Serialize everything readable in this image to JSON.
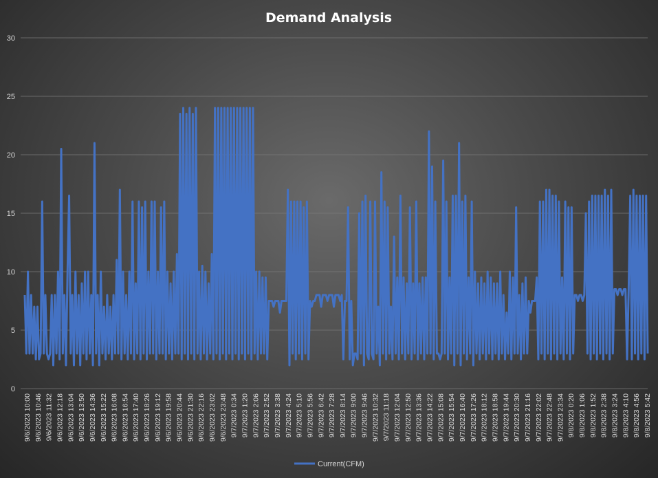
{
  "chart_data": {
    "type": "line",
    "title": "Demand Analysis",
    "xlabel": "",
    "ylabel": "",
    "ylim": [
      0,
      30
    ],
    "yticks": [
      0,
      5,
      10,
      15,
      20,
      25,
      30
    ],
    "grid": true,
    "legend_position": "bottom",
    "series_color": "#4472c4",
    "x_tick_labels": [
      "9/6/2023 10:00",
      "9/6/2023 10:46",
      "9/6/2023 11:32",
      "9/6/2023 12:18",
      "9/6/2023 13:04",
      "9/6/2023 13:50",
      "9/6/2023 14:36",
      "9/6/2023 15:22",
      "9/6/2023 16:08",
      "9/6/2023 16:54",
      "9/6/2023 17:40",
      "9/6/2023 18:26",
      "9/6/2023 19:12",
      "9/6/2023 19:58",
      "9/6/2023 20:44",
      "9/6/2023 21:30",
      "9/6/2023 22:16",
      "9/6/2023 23:02",
      "9/6/2023 23:48",
      "9/7/2023 0:34",
      "9/7/2023 1:20",
      "9/7/2023 2:06",
      "9/7/2023 2:52",
      "9/7/2023 3:38",
      "9/7/2023 4:24",
      "9/7/2023 5:10",
      "9/7/2023 5:56",
      "9/7/2023 6:42",
      "9/7/2023 7:28",
      "9/7/2023 8:14",
      "9/7/2023 9:00",
      "9/7/2023 9:46",
      "9/7/2023 10:32",
      "9/7/2023 11:18",
      "9/7/2023 12:04",
      "9/7/2023 12:50",
      "9/7/2023 13:36",
      "9/7/2023 14:22",
      "9/7/2023 15:08",
      "9/7/2023 15:54",
      "9/7/2023 16:40",
      "9/7/2023 17:26",
      "9/7/2023 18:12",
      "9/7/2023 18:58",
      "9/7/2023 19:44",
      "9/7/2023 20:30",
      "9/7/2023 21:16",
      "9/7/2023 22:02",
      "9/7/2023 22:48",
      "9/7/2023 23:34",
      "9/8/2023 0:20",
      "9/8/2023 1:06",
      "9/8/2023 1:52",
      "9/8/2023 2:38",
      "9/8/2023 3:24",
      "9/8/2023 4:10",
      "9/8/2023 4:56",
      "9/8/2023 5:42"
    ],
    "series": [
      {
        "name": "Current(CFM)",
        "values": [
          8,
          3,
          10,
          3,
          8,
          3,
          7,
          2.5,
          7,
          2.5,
          3,
          16,
          3,
          8,
          3,
          2.5,
          3,
          8,
          2,
          8,
          3,
          10,
          2.5,
          20.5,
          3,
          8,
          2,
          10,
          16.5,
          3,
          8,
          2,
          10,
          3,
          8,
          2,
          9,
          3,
          10,
          2.5,
          10,
          3,
          8,
          2,
          21,
          3,
          8,
          2,
          10,
          3,
          7,
          2.5,
          8,
          3,
          7,
          2.5,
          8,
          3,
          11,
          3,
          17,
          2.5,
          10,
          3,
          8,
          2.5,
          10,
          3,
          16,
          2.5,
          9,
          3,
          16,
          2.5,
          15.5,
          3,
          16,
          2.5,
          10,
          3,
          16,
          3,
          16,
          2.5,
          10,
          3,
          15.5,
          3,
          16,
          2.5,
          10,
          3,
          9,
          2.5,
          10,
          3,
          11.5,
          3,
          23.5,
          2.5,
          24,
          3,
          23.5,
          2.5,
          24,
          3,
          23.5,
          2.5,
          24,
          3,
          10,
          2.5,
          10.5,
          3,
          10,
          2.5,
          9,
          3,
          11.5,
          2.5,
          24,
          3,
          24,
          2.5,
          24,
          3,
          24,
          2.5,
          24,
          3,
          24,
          2.5,
          24,
          3,
          24,
          2.5,
          24,
          3,
          24,
          2.5,
          24,
          3,
          24,
          2.5,
          24,
          3,
          10,
          2.5,
          10,
          3,
          9.5,
          3,
          9.5,
          2.5,
          7.5,
          7.5,
          7.5,
          7,
          7.5,
          7.5,
          7.5,
          6.5,
          7.5,
          7.5,
          7.5,
          7.5,
          17,
          2,
          16,
          3,
          16,
          2.5,
          16,
          3,
          16,
          2.5,
          15.5,
          3,
          16,
          2.5,
          7.5,
          7,
          7.5,
          7.5,
          8,
          8,
          8,
          7,
          8,
          8,
          8,
          7.5,
          8,
          8,
          8,
          7,
          8,
          8,
          8,
          7.5,
          8,
          2.5,
          7.5,
          7.5,
          15.5,
          2.5,
          7.5,
          2,
          3,
          3,
          2.5,
          15,
          3,
          16,
          2,
          16.5,
          3,
          2.5,
          16,
          3,
          2.5,
          16,
          3,
          7,
          2,
          18.5,
          3,
          16,
          2.5,
          15.5,
          3,
          7,
          2.5,
          13,
          3,
          9.5,
          2.5,
          16.5,
          3,
          9.5,
          2.5,
          9,
          3,
          15.5,
          2.5,
          9,
          3,
          16,
          2.5,
          9,
          3,
          9.5,
          2.5,
          9.5,
          3,
          22,
          3,
          19,
          2.5,
          16,
          3,
          3,
          2.5,
          3,
          19.5,
          3,
          16,
          2.5,
          9.5,
          3,
          16.5,
          2,
          16.5,
          3,
          21,
          2,
          16,
          3,
          16.5,
          2.5,
          9.5,
          3,
          16,
          2,
          10,
          3,
          9,
          2.5,
          9.5,
          3,
          9,
          2.5,
          10,
          3,
          9.5,
          2.5,
          9,
          3,
          9,
          2.5,
          10,
          3,
          8,
          2.5,
          6.5,
          3,
          10,
          2.5,
          9.5,
          3,
          15.5,
          3,
          8,
          2.5,
          9,
          3,
          9.5,
          3,
          7.5,
          6.5,
          7.5,
          7.5,
          7.5,
          9.5,
          2.5,
          16,
          3,
          16,
          2.5,
          17,
          3,
          17,
          2.5,
          16.5,
          3,
          16.5,
          2.5,
          16,
          3,
          9.5,
          2.5,
          16,
          3,
          15.5,
          2.5,
          15.5,
          3,
          8,
          8,
          7.5,
          8,
          8,
          7.5,
          8,
          15,
          3,
          16,
          2.5,
          16.5,
          3,
          16.5,
          2.5,
          16.5,
          3,
          16.5,
          2.5,
          17,
          3,
          16.5,
          2.5,
          17,
          3,
          8.5,
          8.5,
          8,
          8.5,
          8.5,
          8,
          8.5,
          8.5,
          2.5,
          8.5,
          16.5,
          2.5,
          17,
          3,
          16.5,
          2.5,
          16.5,
          3,
          16.5,
          2.5,
          16.5,
          3
        ]
      }
    ]
  }
}
